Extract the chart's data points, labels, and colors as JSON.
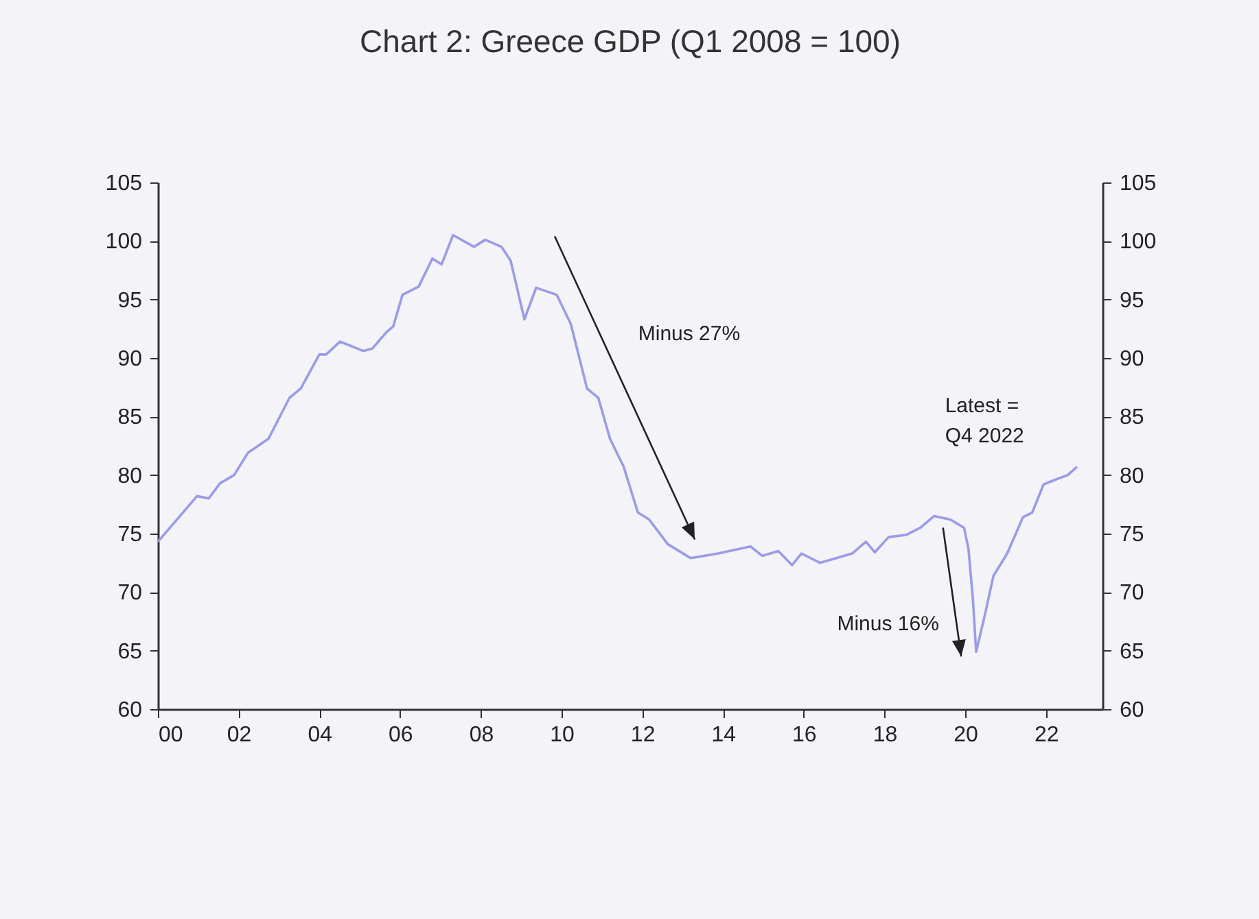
{
  "chart_data": {
    "type": "line",
    "title": "Chart 2: Greece GDP (Q1 2008 = 100)",
    "x": [
      2000.0,
      2000.97,
      2001.26,
      2001.54,
      2001.89,
      2002.23,
      2002.74,
      2003.26,
      2003.54,
      2004.0,
      2004.17,
      2004.51,
      2005.09,
      2005.31,
      2005.66,
      2005.83,
      2006.06,
      2006.46,
      2006.8,
      2007.03,
      2007.31,
      2007.83,
      2008.11,
      2008.51,
      2008.74,
      2009.08,
      2009.37,
      2009.88,
      2010.23,
      2010.63,
      2010.91,
      2011.2,
      2011.54,
      2011.89,
      2012.17,
      2012.63,
      2013.2,
      2013.88,
      2014.68,
      2014.97,
      2015.37,
      2015.71,
      2015.94,
      2016.4,
      2017.2,
      2017.54,
      2017.76,
      2018.1,
      2018.55,
      2018.89,
      2019.23,
      2019.63,
      2019.97,
      2020.08,
      2020.19,
      2020.27,
      2020.47,
      2020.7,
      2021.04,
      2021.43,
      2021.66,
      2021.94,
      2022.23,
      2022.54,
      2022.77
    ],
    "series": [
      {
        "color": "#9b9be6",
        "values": [
          74.3,
          78.2,
          78.0,
          79.3,
          80.0,
          81.9,
          83.1,
          86.6,
          87.4,
          90.3,
          90.3,
          91.4,
          90.6,
          90.8,
          92.2,
          92.7,
          95.4,
          96.1,
          98.5,
          98.0,
          100.5,
          99.5,
          100.1,
          99.5,
          98.3,
          93.3,
          96.0,
          95.4,
          92.9,
          87.4,
          86.6,
          83.1,
          80.7,
          76.8,
          76.2,
          74.1,
          72.9,
          73.3,
          73.9,
          73.1,
          73.5,
          72.3,
          73.3,
          72.5,
          73.3,
          74.3,
          73.4,
          74.7,
          74.9,
          75.5,
          76.5,
          76.2,
          75.5,
          73.7,
          69.4,
          64.9,
          67.8,
          71.4,
          73.3,
          76.4,
          76.8,
          79.2,
          79.6,
          80.0,
          80.7
        ]
      }
    ],
    "xlim": [
      2000,
      2023.4
    ],
    "xticks": [
      {
        "value": 2000,
        "label": "00"
      },
      {
        "value": 2002,
        "label": "02"
      },
      {
        "value": 2004,
        "label": "04"
      },
      {
        "value": 2006,
        "label": "06"
      },
      {
        "value": 2008,
        "label": "08"
      },
      {
        "value": 2010,
        "label": "10"
      },
      {
        "value": 2012,
        "label": "12"
      },
      {
        "value": 2014,
        "label": "14"
      },
      {
        "value": 2016,
        "label": "16"
      },
      {
        "value": 2018,
        "label": "18"
      },
      {
        "value": 2020,
        "label": "20"
      },
      {
        "value": 2022,
        "label": "22"
      }
    ],
    "ylim": [
      60,
      105
    ],
    "yticks": [
      60,
      65,
      70,
      75,
      80,
      85,
      90,
      95,
      100,
      105
    ],
    "y2lim": [
      60,
      105
    ],
    "y2ticks": [
      60,
      65,
      70,
      75,
      80,
      85,
      90,
      95,
      100,
      105
    ],
    "grid": false,
    "annotations": [
      "Minus 27%",
      "Minus 16%",
      "Latest =\nQ4 2022"
    ]
  }
}
